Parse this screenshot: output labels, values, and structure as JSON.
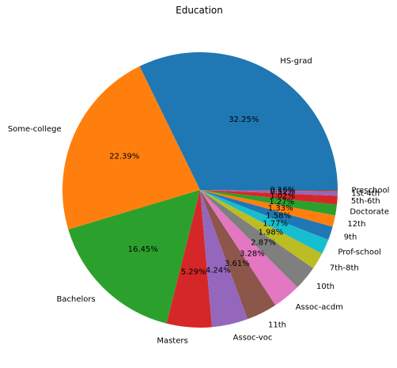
{
  "chart_data": {
    "type": "pie",
    "title": "Education",
    "start_angle_deg": 0,
    "direction": "counterclockwise",
    "slices": [
      {
        "label": "HS-grad",
        "value": 32.25,
        "pct_label": "32.25%",
        "color": "#1f77b4"
      },
      {
        "label": "Some-college",
        "value": 22.39,
        "pct_label": "22.39%",
        "color": "#ff7f0e"
      },
      {
        "label": "Bachelors",
        "value": 16.45,
        "pct_label": "16.45%",
        "color": "#2ca02c"
      },
      {
        "label": "Masters",
        "value": 5.29,
        "pct_label": "5.29%",
        "color": "#d62728"
      },
      {
        "label": "Assoc-voc",
        "value": 4.24,
        "pct_label": "4.24%",
        "color": "#9467bd"
      },
      {
        "label": "11th",
        "value": 3.61,
        "pct_label": "3.61%",
        "color": "#8c564b"
      },
      {
        "label": "Assoc-acdm",
        "value": 3.28,
        "pct_label": "3.28%",
        "color": "#e377c2"
      },
      {
        "label": "10th",
        "value": 2.87,
        "pct_label": "2.87%",
        "color": "#7f7f7f"
      },
      {
        "label": "7th-8th",
        "value": 1.98,
        "pct_label": "1.98%",
        "color": "#bcbd22"
      },
      {
        "label": "Prof-school",
        "value": 1.77,
        "pct_label": "1.77%",
        "color": "#17becf"
      },
      {
        "label": "9th",
        "value": 1.58,
        "pct_label": "1.58%",
        "color": "#1f77b4"
      },
      {
        "label": "12th",
        "value": 1.33,
        "pct_label": "1.33%",
        "color": "#ff7f0e"
      },
      {
        "label": "Doctorate",
        "value": 1.27,
        "pct_label": "1.27%",
        "color": "#2ca02c"
      },
      {
        "label": "5th-6th",
        "value": 1.02,
        "pct_label": "1.02%",
        "color": "#d62728"
      },
      {
        "label": "1st-4th",
        "value": 0.52,
        "pct_label": "0.52%",
        "color": "#9467bd"
      },
      {
        "label": "Preschool",
        "value": 0.16,
        "pct_label": "0.16%",
        "color": "#8c564b"
      }
    ]
  }
}
